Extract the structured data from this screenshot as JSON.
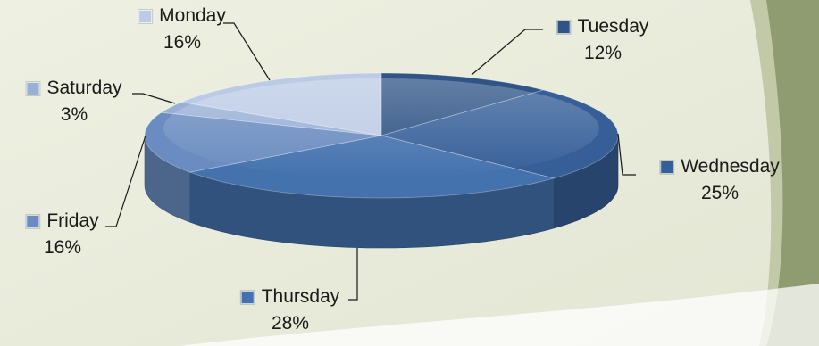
{
  "background": {
    "panel": "#e3e6d3",
    "panel_light": "#eef0e2",
    "accent_green": "#8f9c72",
    "accent_light": "#c1c9a6"
  },
  "chart_data": {
    "type": "pie",
    "title": "",
    "three_d": true,
    "slices": [
      {
        "label": "Tuesday",
        "value": 12,
        "pct_label": "12%",
        "color": "#2f5486"
      },
      {
        "label": "Wednesday",
        "value": 25,
        "pct_label": "25%",
        "color": "#365f98"
      },
      {
        "label": "Thursday",
        "value": 28,
        "pct_label": "28%",
        "color": "#4472ad"
      },
      {
        "label": "Friday",
        "value": 16,
        "pct_label": "16%",
        "color": "#6a8cc0"
      },
      {
        "label": "Saturday",
        "value": 3,
        "pct_label": "3%",
        "color": "#98b0d6"
      },
      {
        "label": "Monday",
        "value": 16,
        "pct_label": "16%",
        "color": "#bccbe5"
      }
    ]
  }
}
